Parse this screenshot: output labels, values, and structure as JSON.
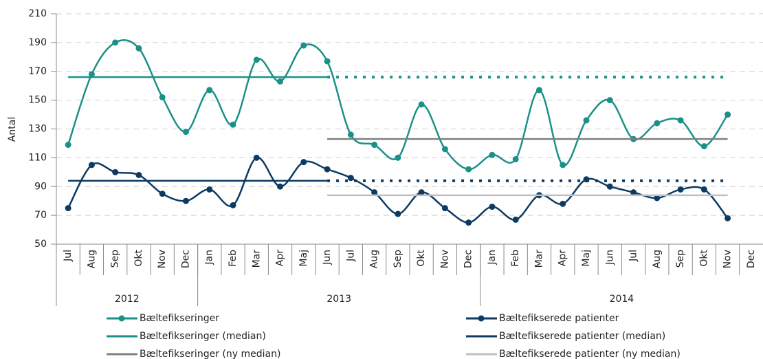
{
  "chart_data": {
    "type": "line",
    "y_label": "Antal",
    "ylim": [
      50,
      210
    ],
    "yticks": [
      50,
      70,
      90,
      110,
      130,
      150,
      170,
      190,
      210
    ],
    "grid": true,
    "categories": [
      "Jul",
      "Aug",
      "Sep",
      "Okt",
      "Nov",
      "Dec",
      "Jan",
      "Feb",
      "Mar",
      "Apr",
      "Maj",
      "Jun",
      "Jul",
      "Aug",
      "Sep",
      "Okt",
      "Nov",
      "Dec",
      "Jan",
      "Feb",
      "Mar",
      "Apr",
      "Maj",
      "Jun",
      "Jul",
      "Aug",
      "Sep",
      "Okt",
      "Nov",
      "Dec"
    ],
    "x_groups": [
      {
        "label": "2012",
        "span": 6
      },
      {
        "label": "2013",
        "span": 12
      },
      {
        "label": "2014",
        "span": 12
      }
    ],
    "legend": "bottom",
    "series": [
      {
        "name": "Bæltefikseringer",
        "color": "#1a9088",
        "markers": true,
        "smooth": true,
        "values": [
          119,
          168,
          190,
          186,
          152,
          128,
          157,
          133,
          178,
          163,
          188,
          177,
          126,
          119,
          110,
          147,
          116,
          102,
          112,
          109,
          157,
          105,
          136,
          150,
          123,
          134,
          136,
          118,
          140,
          null
        ]
      },
      {
        "name": "Bæltefikseringer (median)",
        "color": "#1a9088",
        "solid_until": 11,
        "values": [
          166,
          166,
          166,
          166,
          166,
          166,
          166,
          166,
          166,
          166,
          166,
          166,
          166,
          166,
          166,
          166,
          166,
          166,
          166,
          166,
          166,
          166,
          166,
          166,
          166,
          166,
          166,
          166,
          166,
          null
        ]
      },
      {
        "name": "Bæltefikseringer (ny median)",
        "color": "#808080",
        "values": [
          null,
          null,
          null,
          null,
          null,
          null,
          null,
          null,
          null,
          null,
          null,
          123,
          123,
          123,
          123,
          123,
          123,
          123,
          123,
          123,
          123,
          123,
          123,
          123,
          123,
          123,
          123,
          123,
          123,
          null
        ]
      },
      {
        "name": "Bæltefikserede patienter",
        "color": "#0d3a63",
        "markers": true,
        "smooth": true,
        "values": [
          75,
          105,
          100,
          98,
          85,
          80,
          88,
          77,
          110,
          90,
          107,
          102,
          96,
          86,
          71,
          86,
          75,
          65,
          76,
          67,
          84,
          78,
          95,
          90,
          86,
          82,
          88,
          88,
          68,
          null
        ]
      },
      {
        "name": "Bæltefikserede patienter (median)",
        "color": "#0d3a63",
        "solid_until": 11,
        "values": [
          94,
          94,
          94,
          94,
          94,
          94,
          94,
          94,
          94,
          94,
          94,
          94,
          94,
          94,
          94,
          94,
          94,
          94,
          94,
          94,
          94,
          94,
          94,
          94,
          94,
          94,
          94,
          94,
          94,
          null
        ]
      },
      {
        "name": "Bæltefikserede patienter (ny median)",
        "color": "#c0c0c0",
        "values": [
          null,
          null,
          null,
          null,
          null,
          null,
          null,
          null,
          null,
          null,
          null,
          84,
          84,
          84,
          84,
          84,
          84,
          84,
          84,
          84,
          84,
          84,
          84,
          84,
          84,
          84,
          84,
          84,
          84,
          null
        ]
      }
    ]
  }
}
